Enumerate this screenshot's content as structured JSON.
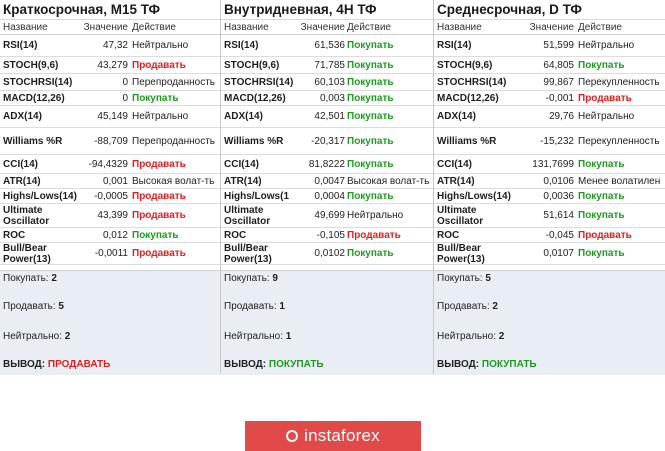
{
  "headers": {
    "name": "Название",
    "value": "Значение",
    "action": "Действие"
  },
  "summary_labels": {
    "buy": "Покупать:",
    "sell": "Продавать:",
    "neutral": "Нейтрально:",
    "verdict": "ВЫВОД:"
  },
  "panels": [
    {
      "title": "Краткосрочная, M15 ТФ",
      "rows": [
        {
          "name": "RSI(14)",
          "value": "47,32",
          "action": "Нейтрально",
          "kind": "neutral"
        },
        {
          "name": "STOCH(9,6)",
          "value": "43,279",
          "action": "Продавать",
          "kind": "sell"
        },
        {
          "name": "STOCHRSI(14)",
          "value": "0",
          "action": "Перепроданность",
          "kind": "neutral"
        },
        {
          "name": "MACD(12,26)",
          "value": "0",
          "action": "Покупать",
          "kind": "buy"
        },
        {
          "name": "ADX(14)",
          "value": "45,149",
          "action": "Нейтрально",
          "kind": "neutral"
        },
        {
          "name": "Williams %R",
          "value": "-88,709",
          "action": "Перепроданность",
          "kind": "neutral"
        },
        {
          "name": "CCI(14)",
          "value": "-94,4329",
          "action": "Продавать",
          "kind": "sell"
        },
        {
          "name": "ATR(14)",
          "value": "0,001",
          "action": "Высокая волат-ть",
          "kind": "neutral"
        },
        {
          "name": "Highs/Lows(14)",
          "value": "-0,0005",
          "action": "Продавать",
          "kind": "sell"
        },
        {
          "name": "Ultimate Oscillator",
          "value": "43,399",
          "action": "Продавать",
          "kind": "sell"
        },
        {
          "name": "ROC",
          "value": "0,012",
          "action": "Покупать",
          "kind": "buy"
        },
        {
          "name": "Bull/Bear Power(13)",
          "value": "-0,0011",
          "action": "Продавать",
          "kind": "sell"
        }
      ],
      "summary": {
        "buy": "2",
        "sell": "5",
        "neutral": "2",
        "verdict": "ПРОДАВАТЬ",
        "verdict_kind": "sell"
      }
    },
    {
      "title": "Внутридневная, 4H ТФ",
      "rows": [
        {
          "name": "RSI(14)",
          "value": "61,536",
          "action": "Покупать",
          "kind": "buy"
        },
        {
          "name": "STOCH(9,6)",
          "value": "71,785",
          "action": "Покупать",
          "kind": "buy"
        },
        {
          "name": "STOCHRSI(14)",
          "value": "60,103",
          "action": "Покупать",
          "kind": "buy"
        },
        {
          "name": "MACD(12,26)",
          "value": "0,003",
          "action": "Покупать",
          "kind": "buy"
        },
        {
          "name": "ADX(14)",
          "value": "42,501",
          "action": "Покупать",
          "kind": "buy"
        },
        {
          "name": "Williams %R",
          "value": "-20,317",
          "action": "Покупать",
          "kind": "buy"
        },
        {
          "name": "CCI(14)",
          "value": "81,8222",
          "action": "Покупать",
          "kind": "buy"
        },
        {
          "name": "ATR(14)",
          "value": "0,0047",
          "action": "Высокая волат-ть",
          "kind": "neutral"
        },
        {
          "name": "Highs/Lows(1",
          "value": "0,0004",
          "action": "Покупать",
          "kind": "buy"
        },
        {
          "name": "Ultimate Oscillator",
          "value": "49,699",
          "action": "Нейтрально",
          "kind": "neutral"
        },
        {
          "name": "ROC",
          "value": "-0,105",
          "action": "Продавать",
          "kind": "sell"
        },
        {
          "name": "Bull/Bear Power(13)",
          "value": "0,0102",
          "action": "Покупать",
          "kind": "buy"
        }
      ],
      "summary": {
        "buy": "9",
        "sell": "1",
        "neutral": "1",
        "verdict": "ПОКУПАТЬ",
        "verdict_kind": "buy"
      }
    },
    {
      "title": "Среднесрочная, D ТФ",
      "rows": [
        {
          "name": "RSI(14)",
          "value": "51,599",
          "action": "Нейтрально",
          "kind": "neutral"
        },
        {
          "name": "STOCH(9,6)",
          "value": "64,805",
          "action": "Покупать",
          "kind": "buy"
        },
        {
          "name": "STOCHRSI(14)",
          "value": "99,867",
          "action": "Перекупленность",
          "kind": "neutral"
        },
        {
          "name": "MACD(12,26)",
          "value": "-0,001",
          "action": "Продавать",
          "kind": "sell"
        },
        {
          "name": "ADX(14)",
          "value": "29,76",
          "action": "Нейтрально",
          "kind": "neutral"
        },
        {
          "name": "Williams %R",
          "value": "-15,232",
          "action": "Перекупленность",
          "kind": "neutral"
        },
        {
          "name": "CCI(14)",
          "value": "131,7699",
          "action": "Покупать",
          "kind": "buy"
        },
        {
          "name": "ATR(14)",
          "value": "0,0106",
          "action": "Менее волатилен",
          "kind": "neutral"
        },
        {
          "name": "Highs/Lows(14)",
          "value": "0,0036",
          "action": "Покупать",
          "kind": "buy"
        },
        {
          "name": "Ultimate Oscillator",
          "value": "51,614",
          "action": "Покупать",
          "kind": "buy"
        },
        {
          "name": "ROC",
          "value": "-0,045",
          "action": "Продавать",
          "kind": "sell"
        },
        {
          "name": "Bull/Bear Power(13)",
          "value": "0,0107",
          "action": "Покупать",
          "kind": "buy"
        }
      ],
      "summary": {
        "buy": "5",
        "sell": "2",
        "neutral": "2",
        "verdict": "ПОКУПАТЬ",
        "verdict_kind": "buy"
      }
    }
  ],
  "colors": {
    "buy": "#1e9b1e",
    "sell": "#e02020",
    "logo_bg": "#e24a4a",
    "summary_bg": "#e9eef4"
  },
  "logo": {
    "text": "instaforex",
    "icon": "ring-icon"
  }
}
